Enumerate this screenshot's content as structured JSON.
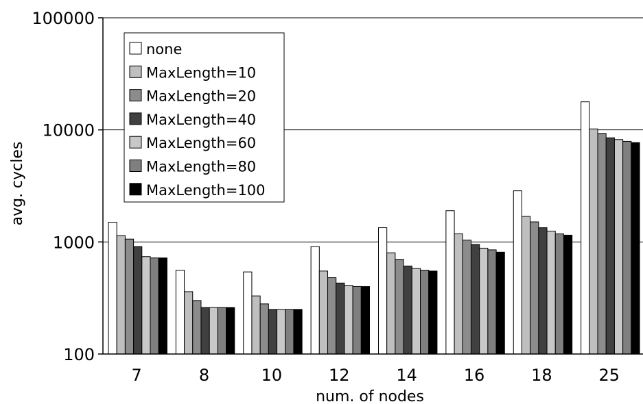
{
  "chart_data": {
    "type": "bar",
    "title": "",
    "xlabel": "num. of nodes",
    "ylabel": "avg. cycles",
    "y_scale": "log",
    "ylim": [
      100,
      100000
    ],
    "y_ticks": [
      "100",
      "1000",
      "10000",
      "100000"
    ],
    "grid": "horizontal major lines",
    "legend_position": "top-left",
    "categories": [
      "7",
      "8",
      "10",
      "12",
      "14",
      "16",
      "18",
      "25"
    ],
    "series": [
      {
        "name": "none",
        "color": "#ffffff",
        "values": [
          1500,
          560,
          540,
          910,
          1340,
          1900,
          2860,
          17800
        ]
      },
      {
        "name": "MaxLength=10",
        "color": "#bfbfbf",
        "values": [
          1140,
          360,
          330,
          550,
          800,
          1180,
          1690,
          10200
        ]
      },
      {
        "name": "MaxLength=20",
        "color": "#8c8c8c",
        "values": [
          1060,
          300,
          280,
          480,
          700,
          1040,
          1510,
          9300
        ]
      },
      {
        "name": "MaxLength=40",
        "color": "#404040",
        "values": [
          910,
          260,
          250,
          430,
          610,
          950,
          1340,
          8500
        ]
      },
      {
        "name": "MaxLength=60",
        "color": "#c8c8c8",
        "values": [
          740,
          260,
          250,
          410,
          580,
          880,
          1250,
          8200
        ]
      },
      {
        "name": "MaxLength=80",
        "color": "#7f7f7f",
        "values": [
          720,
          260,
          250,
          400,
          560,
          850,
          1180,
          7900
        ]
      },
      {
        "name": "MaxLength=100",
        "color": "#000000",
        "values": [
          720,
          260,
          250,
          400,
          550,
          810,
          1150,
          7700
        ]
      }
    ]
  }
}
